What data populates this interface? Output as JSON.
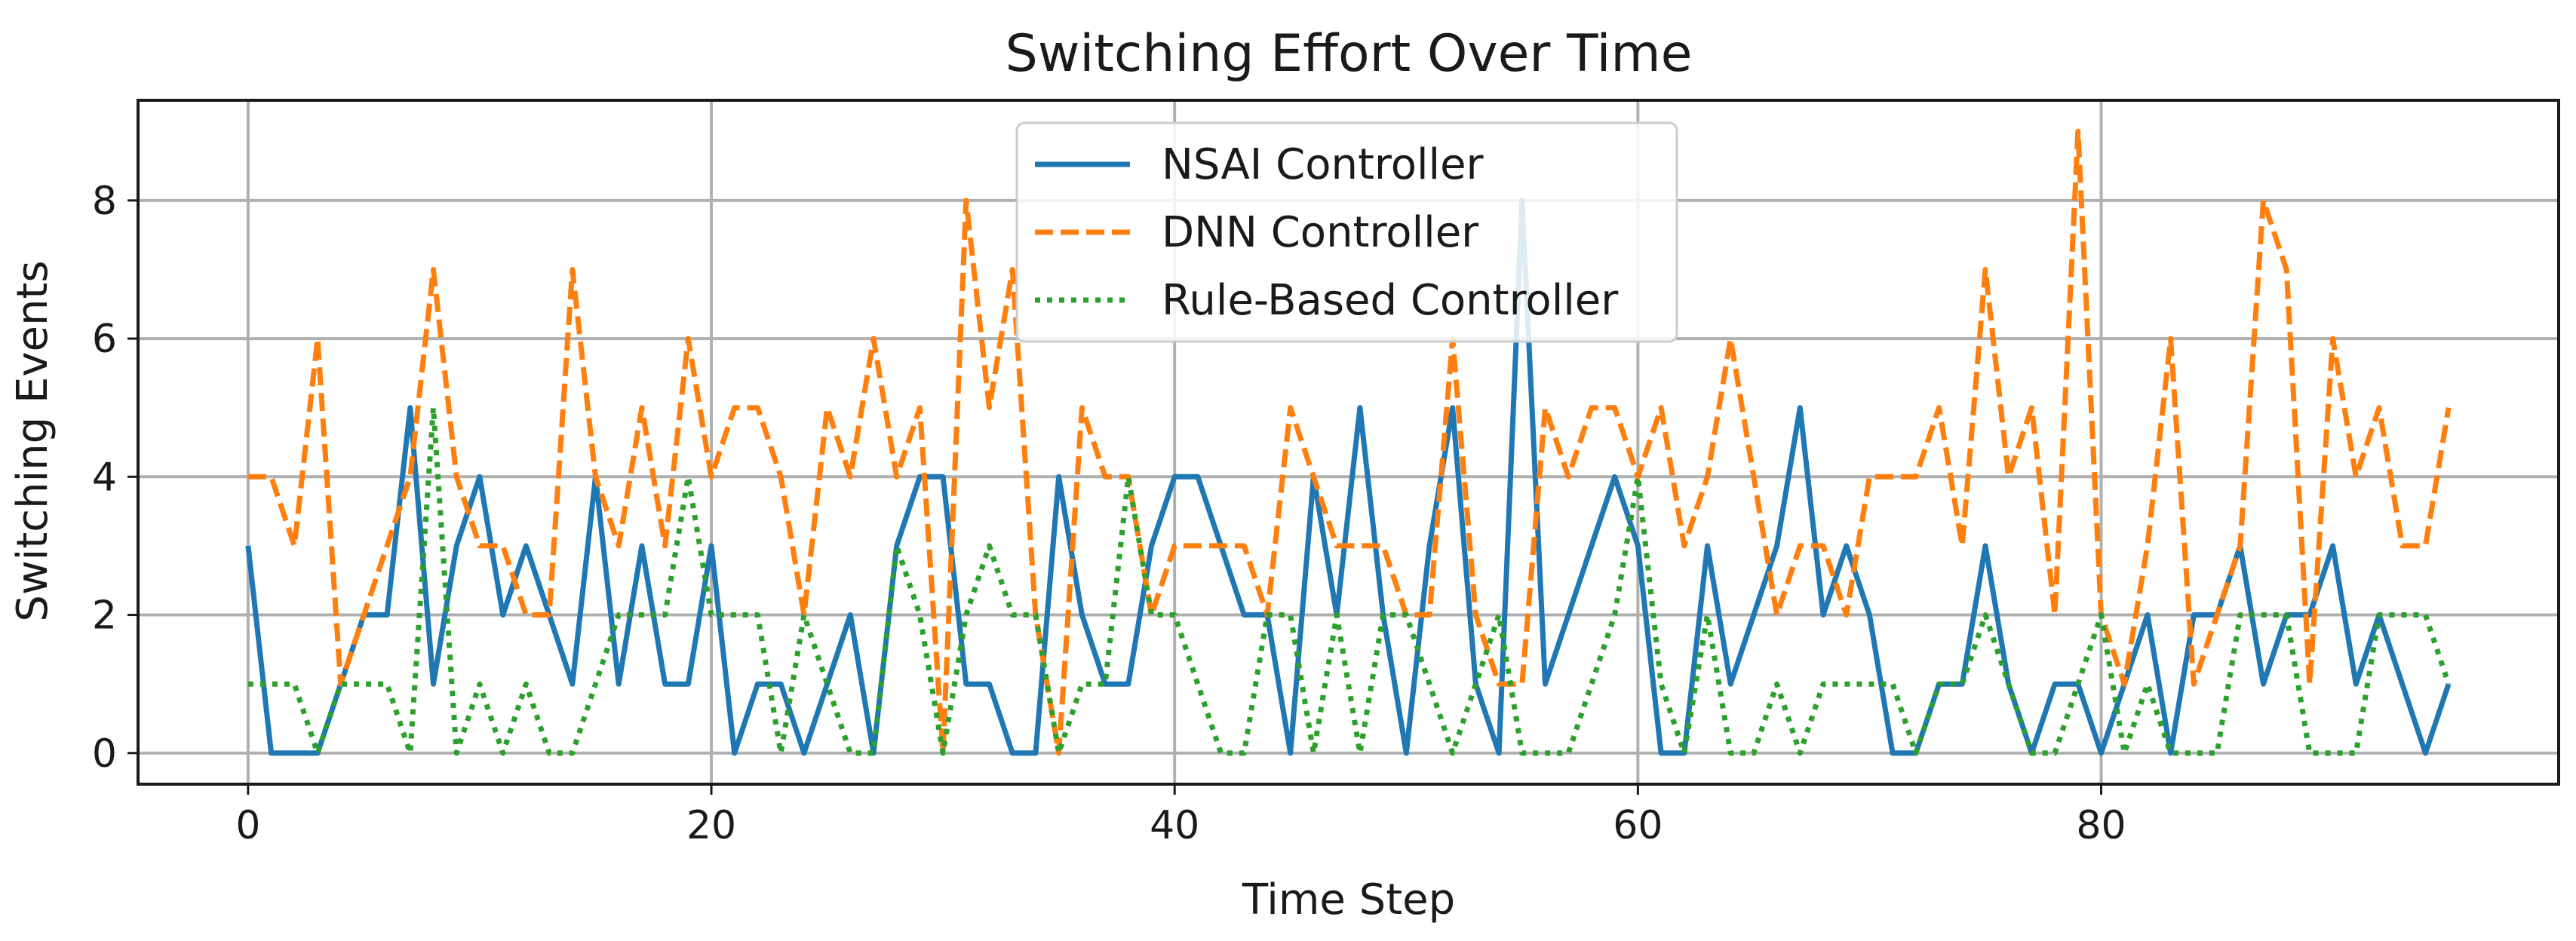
{
  "chart_data": {
    "type": "line",
    "title": "Switching Effort Over Time",
    "xlabel": "Time Step",
    "ylabel": "Switching Events",
    "xlim": [
      -4.75,
      99.75
    ],
    "ylim": [
      -0.45,
      9.45
    ],
    "xticks": [
      0,
      20,
      40,
      60,
      80
    ],
    "yticks": [
      0,
      2,
      4,
      6,
      8
    ],
    "grid": true,
    "legend_position": "top-center",
    "series": [
      {
        "name": "NSAI Controller",
        "color": "#1f77b4",
        "style": "solid",
        "values": [
          3,
          0,
          0,
          0,
          1,
          2,
          2,
          5,
          1,
          3,
          4,
          2,
          3,
          2,
          1,
          4,
          1,
          3,
          1,
          1,
          3,
          0,
          1,
          1,
          0,
          1,
          2,
          0,
          3,
          4,
          4,
          1,
          1,
          0,
          0,
          4,
          2,
          1,
          1,
          3,
          4,
          4,
          3,
          2,
          2,
          0,
          4,
          2,
          5,
          2,
          0,
          3,
          5,
          1,
          0,
          8,
          1,
          2,
          3,
          4,
          3,
          0,
          0,
          3,
          1,
          2,
          3,
          5,
          2,
          3,
          2,
          0,
          0,
          1,
          1,
          3,
          1,
          0,
          1,
          1,
          0,
          1,
          2,
          0,
          2,
          2,
          3,
          1,
          2,
          2,
          3,
          1,
          2,
          1,
          0,
          1
        ]
      },
      {
        "name": "DNN Controller",
        "color": "#ff7f0e",
        "style": "dashed",
        "values": [
          4,
          4,
          3,
          6,
          1,
          2,
          3,
          4,
          7,
          4,
          3,
          3,
          2,
          2,
          7,
          4,
          3,
          5,
          3,
          6,
          4,
          5,
          5,
          4,
          2,
          5,
          4,
          6,
          4,
          5,
          0,
          8,
          5,
          7,
          2,
          0,
          5,
          4,
          4,
          2,
          3,
          3,
          3,
          3,
          2,
          5,
          4,
          3,
          3,
          3,
          2,
          2,
          6,
          2,
          1,
          1,
          5,
          4,
          5,
          5,
          4,
          5,
          3,
          4,
          6,
          4,
          2,
          3,
          3,
          2,
          4,
          4,
          4,
          5,
          3,
          7,
          4,
          5,
          2,
          9,
          2,
          1,
          3,
          6,
          1,
          2,
          3,
          8,
          7,
          1,
          6,
          4,
          5,
          3,
          3,
          5
        ]
      },
      {
        "name": "Rule-Based Controller",
        "color": "#2ca02c",
        "style": "dotted",
        "values": [
          1,
          1,
          1,
          0,
          1,
          1,
          1,
          0,
          5,
          0,
          1,
          0,
          1,
          0,
          0,
          1,
          2,
          2,
          2,
          4,
          2,
          2,
          2,
          0,
          2,
          1,
          0,
          0,
          3,
          2,
          0,
          2,
          3,
          2,
          2,
          0,
          1,
          1,
          4,
          2,
          2,
          1,
          0,
          0,
          2,
          2,
          0,
          2,
          0,
          2,
          2,
          1,
          0,
          1,
          2,
          0,
          0,
          0,
          1,
          2,
          4,
          1,
          0,
          2,
          0,
          0,
          1,
          0,
          1,
          1,
          1,
          1,
          0,
          1,
          1,
          2,
          1,
          0,
          0,
          1,
          2,
          0,
          1,
          0,
          0,
          0,
          2,
          2,
          2,
          0,
          0,
          0,
          2,
          2,
          2,
          1
        ]
      }
    ]
  }
}
